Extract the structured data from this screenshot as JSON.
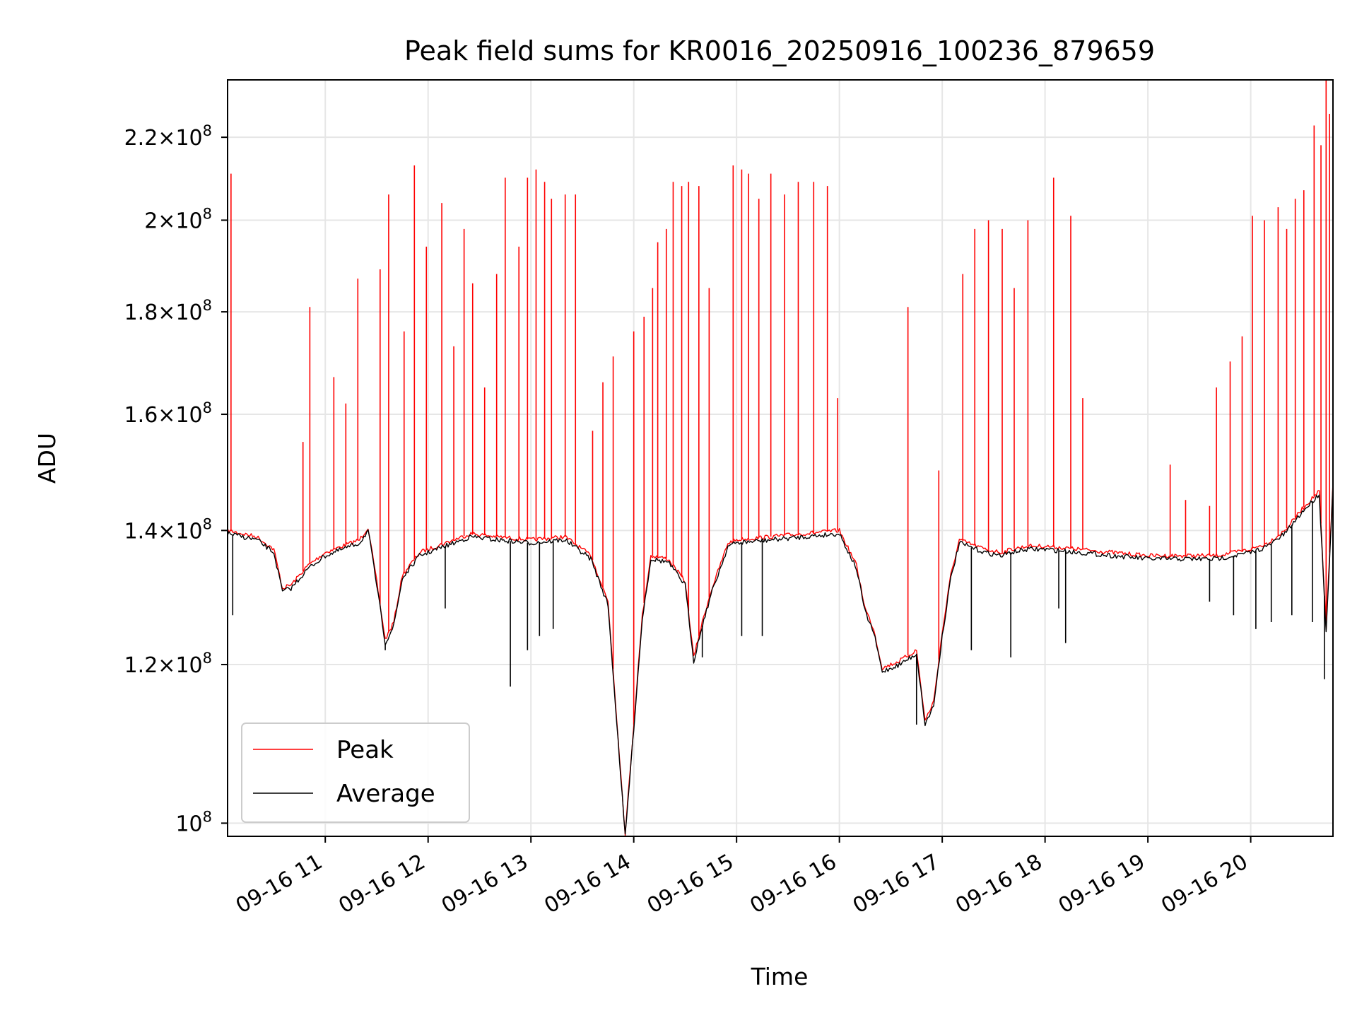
{
  "chart_data": {
    "type": "line",
    "title": "Peak field sums for KR0016_20250916_100236_879659",
    "xlabel": "Time",
    "ylabel": "ADU",
    "y_scale": "log",
    "grid": true,
    "legend_position": "lower-left",
    "x_range": [
      "2025-09-16 10:03",
      "2025-09-16 20:48"
    ],
    "ylim": [
      98500000,
      235000000
    ],
    "x_ticks": [
      "09-16 11",
      "09-16 12",
      "09-16 13",
      "09-16 14",
      "09-16 15",
      "09-16 16",
      "09-16 17",
      "09-16 18",
      "09-16 19",
      "09-16 20"
    ],
    "y_ticks": [
      {
        "value": 100000000,
        "mantissa": "",
        "exponent": "8"
      },
      {
        "value": 120000000,
        "mantissa": "1.2",
        "exponent": "8"
      },
      {
        "value": 140000000,
        "mantissa": "1.4",
        "exponent": "8"
      },
      {
        "value": 160000000,
        "mantissa": "1.6",
        "exponent": "8"
      },
      {
        "value": 180000000,
        "mantissa": "1.8",
        "exponent": "8"
      },
      {
        "value": 200000000,
        "mantissa": "2",
        "exponent": "8"
      },
      {
        "value": 220000000,
        "mantissa": "2.2",
        "exponent": "8"
      }
    ],
    "series": [
      {
        "name": "Peak",
        "color": "#ff0000",
        "baseline": {
          "x": [
            "10:03",
            "10:20",
            "10:30",
            "10:35",
            "10:40",
            "10:50",
            "10:55",
            "11:00",
            "11:10",
            "11:20",
            "11:25",
            "11:30",
            "11:35",
            "11:40",
            "11:45",
            "11:55",
            "12:10",
            "12:25",
            "12:40",
            "13:00",
            "13:20",
            "13:35",
            "13:45",
            "13:50",
            "13:55",
            "14:00",
            "14:05",
            "14:10",
            "14:20",
            "14:30",
            "14:35",
            "14:40",
            "14:45",
            "14:55",
            "15:00",
            "15:20",
            "15:40",
            "16:00",
            "16:10",
            "16:15",
            "16:20",
            "16:25",
            "16:35",
            "16:45",
            "16:50",
            "16:55",
            "17:00",
            "17:05",
            "17:10",
            "17:15",
            "17:25",
            "17:35",
            "17:40",
            "17:50",
            "18:00",
            "18:20",
            "18:40",
            "19:00",
            "19:20",
            "19:40",
            "20:00",
            "20:10",
            "20:20",
            "20:30",
            "20:40",
            "20:44",
            "20:48"
          ],
          "y": [
            140000000,
            139000000,
            137000000,
            131000000,
            131500000,
            134500000,
            135500000,
            136500000,
            137500000,
            138500000,
            140500000,
            132000000,
            123500000,
            126000000,
            133000000,
            136500000,
            138000000,
            139500000,
            139000000,
            138500000,
            139000000,
            136000000,
            129000000,
            113000000,
            98800000,
            112000000,
            127000000,
            136000000,
            135500000,
            132000000,
            121000000,
            126000000,
            130500000,
            138000000,
            138500000,
            139000000,
            139500000,
            140000000,
            134500000,
            128000000,
            125000000,
            119500000,
            120500000,
            122000000,
            112500000,
            115000000,
            124500000,
            133000000,
            138500000,
            138000000,
            137000000,
            136500000,
            137000000,
            137500000,
            137500000,
            137000000,
            136500000,
            136000000,
            136000000,
            136000000,
            137000000,
            138000000,
            140000000,
            143500000,
            146500000,
            125000000,
            148000000
          ]
        },
        "spikes": [
          {
            "x": "10:05",
            "y": 211000000
          },
          {
            "x": "10:47",
            "y": 155000000
          },
          {
            "x": "10:51",
            "y": 181000000
          },
          {
            "x": "11:05",
            "y": 167000000
          },
          {
            "x": "11:12",
            "y": 162000000
          },
          {
            "x": "11:19",
            "y": 187000000
          },
          {
            "x": "11:32",
            "y": 189000000
          },
          {
            "x": "11:37",
            "y": 206000000
          },
          {
            "x": "11:46",
            "y": 176000000
          },
          {
            "x": "11:52",
            "y": 213000000
          },
          {
            "x": "11:59",
            "y": 194000000
          },
          {
            "x": "12:08",
            "y": 204000000
          },
          {
            "x": "12:15",
            "y": 173000000
          },
          {
            "x": "12:21",
            "y": 198000000
          },
          {
            "x": "12:26",
            "y": 186000000
          },
          {
            "x": "12:33",
            "y": 165000000
          },
          {
            "x": "12:40",
            "y": 188000000
          },
          {
            "x": "12:45",
            "y": 210000000
          },
          {
            "x": "12:53",
            "y": 194000000
          },
          {
            "x": "12:58",
            "y": 210000000
          },
          {
            "x": "13:03",
            "y": 212000000
          },
          {
            "x": "13:08",
            "y": 209000000
          },
          {
            "x": "13:12",
            "y": 205000000
          },
          {
            "x": "13:20",
            "y": 206000000
          },
          {
            "x": "13:26",
            "y": 206000000
          },
          {
            "x": "13:36",
            "y": 157000000
          },
          {
            "x": "13:42",
            "y": 166000000
          },
          {
            "x": "13:48",
            "y": 171000000
          },
          {
            "x": "14:00",
            "y": 176000000
          },
          {
            "x": "14:06",
            "y": 179000000
          },
          {
            "x": "14:11",
            "y": 185000000
          },
          {
            "x": "14:14",
            "y": 195000000
          },
          {
            "x": "14:19",
            "y": 198000000
          },
          {
            "x": "14:23",
            "y": 209000000
          },
          {
            "x": "14:28",
            "y": 208000000
          },
          {
            "x": "14:32",
            "y": 209000000
          },
          {
            "x": "14:38",
            "y": 208000000
          },
          {
            "x": "14:44",
            "y": 185000000
          },
          {
            "x": "14:58",
            "y": 213000000
          },
          {
            "x": "15:03",
            "y": 212000000
          },
          {
            "x": "15:07",
            "y": 211000000
          },
          {
            "x": "15:13",
            "y": 205000000
          },
          {
            "x": "15:20",
            "y": 211000000
          },
          {
            "x": "15:28",
            "y": 206000000
          },
          {
            "x": "15:36",
            "y": 209000000
          },
          {
            "x": "15:45",
            "y": 209000000
          },
          {
            "x": "15:53",
            "y": 208000000
          },
          {
            "x": "15:59",
            "y": 163000000
          },
          {
            "x": "16:40",
            "y": 181000000
          },
          {
            "x": "16:58",
            "y": 150000000
          },
          {
            "x": "17:12",
            "y": 188000000
          },
          {
            "x": "17:19",
            "y": 198000000
          },
          {
            "x": "17:27",
            "y": 200000000
          },
          {
            "x": "17:35",
            "y": 198000000
          },
          {
            "x": "17:42",
            "y": 185000000
          },
          {
            "x": "17:50",
            "y": 200000000
          },
          {
            "x": "18:05",
            "y": 210000000
          },
          {
            "x": "18:15",
            "y": 201000000
          },
          {
            "x": "18:22",
            "y": 163000000
          },
          {
            "x": "19:13",
            "y": 151000000
          },
          {
            "x": "19:22",
            "y": 145000000
          },
          {
            "x": "19:36",
            "y": 144000000
          },
          {
            "x": "19:40",
            "y": 165000000
          },
          {
            "x": "19:48",
            "y": 170000000
          },
          {
            "x": "19:55",
            "y": 175000000
          },
          {
            "x": "20:01",
            "y": 201000000
          },
          {
            "x": "20:08",
            "y": 200000000
          },
          {
            "x": "20:16",
            "y": 203000000
          },
          {
            "x": "20:21",
            "y": 198000000
          },
          {
            "x": "20:26",
            "y": 205000000
          },
          {
            "x": "20:31",
            "y": 207000000
          },
          {
            "x": "20:37",
            "y": 223000000
          },
          {
            "x": "20:41",
            "y": 218000000
          },
          {
            "x": "20:44",
            "y": 235000000
          },
          {
            "x": "20:46",
            "y": 226000000
          }
        ]
      },
      {
        "name": "Average",
        "color": "#000000",
        "baseline": {
          "x": [
            "10:03",
            "10:20",
            "10:30",
            "10:35",
            "10:40",
            "10:50",
            "10:55",
            "11:00",
            "11:10",
            "11:20",
            "11:25",
            "11:30",
            "11:35",
            "11:40",
            "11:45",
            "11:55",
            "12:10",
            "12:25",
            "12:40",
            "13:00",
            "13:20",
            "13:35",
            "13:45",
            "13:50",
            "13:55",
            "14:00",
            "14:05",
            "14:10",
            "14:20",
            "14:30",
            "14:35",
            "14:40",
            "14:45",
            "14:55",
            "15:00",
            "15:20",
            "15:40",
            "16:00",
            "16:10",
            "16:15",
            "16:20",
            "16:25",
            "16:35",
            "16:45",
            "16:50",
            "16:55",
            "17:00",
            "17:05",
            "17:10",
            "17:15",
            "17:25",
            "17:35",
            "17:40",
            "17:50",
            "18:00",
            "18:20",
            "18:40",
            "19:00",
            "19:20",
            "19:40",
            "20:00",
            "20:10",
            "20:20",
            "20:30",
            "20:40",
            "20:44",
            "20:48"
          ],
          "y": [
            139500000,
            138500000,
            136500000,
            130500000,
            131000000,
            134000000,
            135000000,
            136000000,
            137000000,
            138000000,
            140000000,
            131500000,
            123000000,
            125500000,
            132500000,
            136000000,
            137500000,
            139000000,
            138500000,
            138000000,
            138500000,
            135500000,
            128500000,
            112500000,
            98500000,
            111500000,
            126500000,
            135500000,
            135000000,
            131500000,
            120500000,
            125500000,
            130000000,
            137500000,
            138000000,
            138500000,
            139000000,
            139500000,
            134000000,
            127500000,
            124500000,
            119000000,
            120000000,
            121500000,
            112000000,
            114500000,
            124000000,
            132500000,
            138000000,
            137500000,
            136500000,
            136000000,
            136500000,
            137000000,
            137000000,
            136500000,
            136000000,
            135500000,
            135500000,
            135500000,
            136500000,
            137500000,
            139500000,
            143000000,
            146000000,
            124500000,
            147500000
          ]
        },
        "dips": [
          {
            "x": "10:06",
            "y": 127000000
          },
          {
            "x": "11:35",
            "y": 122000000
          },
          {
            "x": "12:10",
            "y": 128000000
          },
          {
            "x": "12:48",
            "y": 117000000
          },
          {
            "x": "12:58",
            "y": 122000000
          },
          {
            "x": "13:05",
            "y": 124000000
          },
          {
            "x": "13:13",
            "y": 125000000
          },
          {
            "x": "14:40",
            "y": 121000000
          },
          {
            "x": "15:03",
            "y": 124000000
          },
          {
            "x": "15:15",
            "y": 124000000
          },
          {
            "x": "16:45",
            "y": 112000000
          },
          {
            "x": "17:17",
            "y": 122000000
          },
          {
            "x": "17:40",
            "y": 121000000
          },
          {
            "x": "18:08",
            "y": 128000000
          },
          {
            "x": "18:12",
            "y": 123000000
          },
          {
            "x": "19:36",
            "y": 129000000
          },
          {
            "x": "19:50",
            "y": 127000000
          },
          {
            "x": "20:03",
            "y": 125000000
          },
          {
            "x": "20:12",
            "y": 126000000
          },
          {
            "x": "20:24",
            "y": 127000000
          },
          {
            "x": "20:36",
            "y": 126000000
          },
          {
            "x": "20:43",
            "y": 118000000
          }
        ]
      }
    ]
  }
}
